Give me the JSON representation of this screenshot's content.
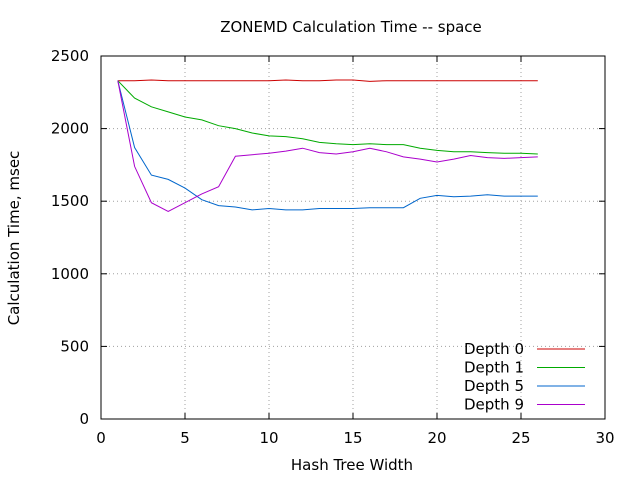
{
  "chart_data": {
    "type": "line",
    "title": "ZONEMD Calculation Time -- space",
    "xlabel": "Hash Tree Width",
    "ylabel": "Calculation Time, msec",
    "xlim": [
      0,
      30
    ],
    "ylim": [
      0,
      2500
    ],
    "xticks": [
      0,
      5,
      10,
      15,
      20,
      25,
      30
    ],
    "yticks": [
      0,
      500,
      1000,
      1500,
      2000,
      2500
    ],
    "xtick_labels": [
      "0",
      "5",
      "10",
      "15",
      "20",
      "25",
      "30"
    ],
    "ytick_labels": [
      "0",
      "500",
      "1000",
      "1500",
      "2000",
      "2500"
    ],
    "grid": true,
    "legend_position": "bottom-right",
    "x": [
      1,
      2,
      3,
      4,
      5,
      6,
      7,
      8,
      9,
      10,
      11,
      12,
      13,
      14,
      15,
      16,
      17,
      18,
      19,
      20,
      21,
      22,
      23,
      24,
      25,
      26
    ],
    "series": [
      {
        "name": "Depth 0",
        "color": "#cc0000",
        "values": [
          2330,
          2330,
          2335,
          2330,
          2330,
          2330,
          2330,
          2330,
          2330,
          2330,
          2335,
          2330,
          2330,
          2335,
          2335,
          2325,
          2330,
          2330,
          2330,
          2330,
          2330,
          2330,
          2330,
          2330,
          2330,
          2330
        ]
      },
      {
        "name": "Depth 1",
        "color": "#00aa00",
        "values": [
          2330,
          2210,
          2150,
          2115,
          2080,
          2060,
          2020,
          2000,
          1970,
          1950,
          1945,
          1930,
          1905,
          1895,
          1890,
          1895,
          1890,
          1890,
          1865,
          1850,
          1840,
          1840,
          1835,
          1830,
          1830,
          1825
        ]
      },
      {
        "name": "Depth 5",
        "color": "#0066cc",
        "values": [
          2330,
          1870,
          1680,
          1650,
          1590,
          1510,
          1470,
          1460,
          1440,
          1450,
          1440,
          1440,
          1450,
          1450,
          1450,
          1455,
          1455,
          1455,
          1520,
          1540,
          1530,
          1535,
          1545,
          1535,
          1535,
          1535
        ]
      },
      {
        "name": "Depth 9",
        "color": "#aa00cc",
        "values": [
          2330,
          1740,
          1490,
          1430,
          1490,
          1550,
          1600,
          1810,
          1820,
          1830,
          1845,
          1865,
          1835,
          1825,
          1840,
          1865,
          1840,
          1805,
          1790,
          1770,
          1790,
          1815,
          1800,
          1795,
          1800,
          1805
        ]
      }
    ]
  }
}
